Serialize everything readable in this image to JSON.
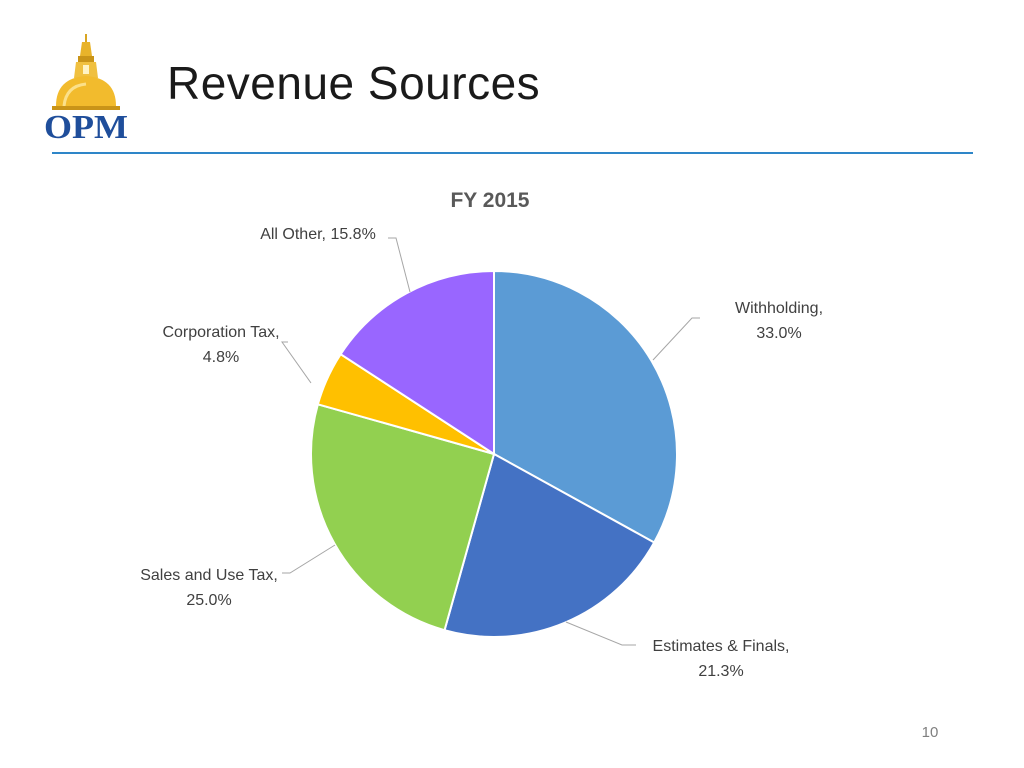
{
  "slide": {
    "title": "Revenue Sources",
    "page_number": "10",
    "logo_text": "OPM"
  },
  "chart_data": {
    "type": "pie",
    "title": "FY 2015",
    "slices": [
      {
        "name": "Withholding",
        "value": 33.0,
        "label": "Withholding,",
        "pct": "33.0%",
        "color": "#5b9bd5"
      },
      {
        "name": "Estimates & Finals",
        "value": 21.3,
        "label": "Estimates & Finals,",
        "pct": "21.3%",
        "color": "#4472c4"
      },
      {
        "name": "Sales and Use Tax",
        "value": 25.0,
        "label": "Sales and Use Tax,",
        "pct": "25.0%",
        "color": "#92d050"
      },
      {
        "name": "Corporation Tax",
        "value": 4.8,
        "label": "Corporation Tax,",
        "pct": "4.8%",
        "color": "#ffc000"
      },
      {
        "name": "All Other",
        "value": 15.8,
        "label": "All Other, 15.8%",
        "pct": "",
        "color": "#9966ff"
      }
    ],
    "start_angle": "12 o'clock",
    "direction": "clockwise",
    "legend": "none",
    "data_labels": "outside with leader lines"
  }
}
